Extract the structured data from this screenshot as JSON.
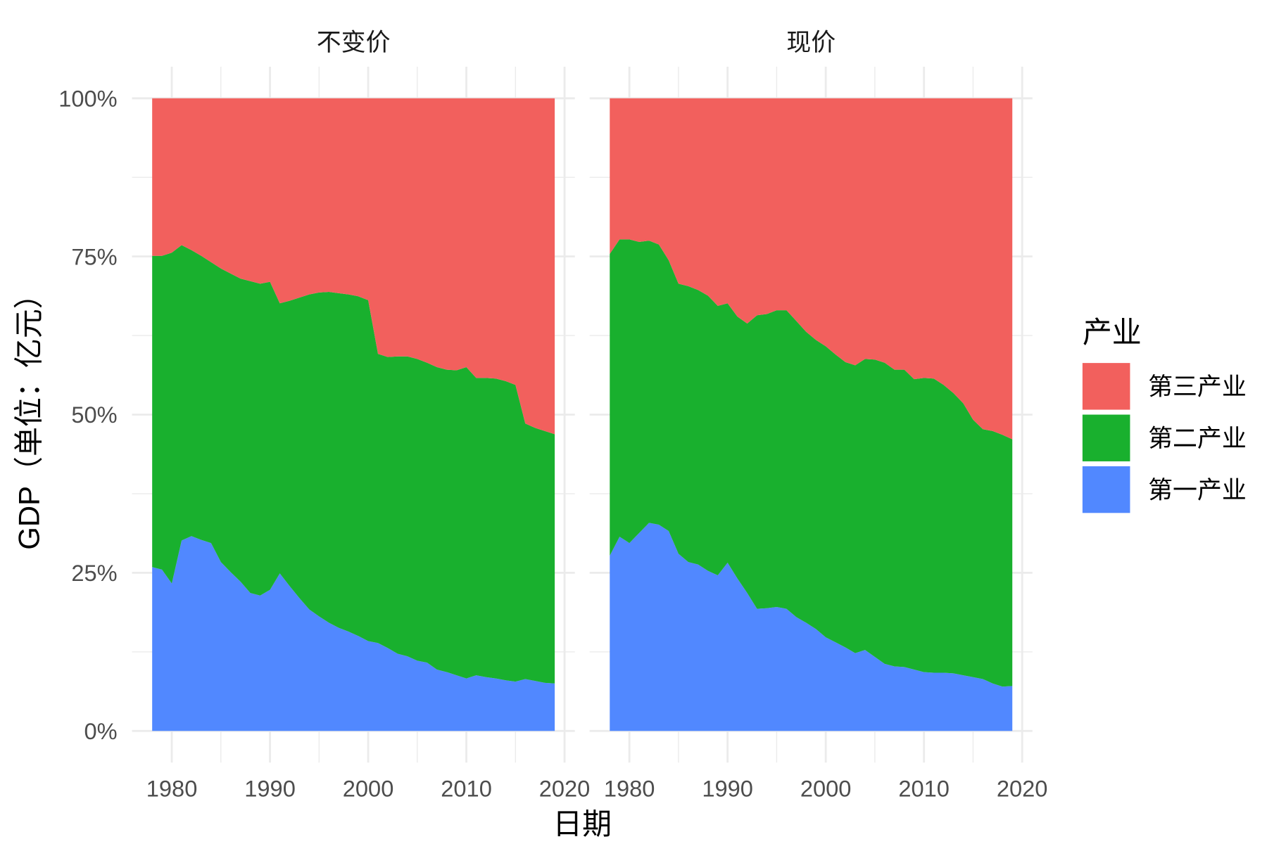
{
  "chart_data": {
    "type": "area",
    "stacking": "percent",
    "xlabel": "日期",
    "ylabel": "GDP（单位：亿元）",
    "x": [
      1978,
      1979,
      1980,
      1981,
      1982,
      1983,
      1984,
      1985,
      1986,
      1987,
      1988,
      1989,
      1990,
      1991,
      1992,
      1993,
      1994,
      1995,
      1996,
      1997,
      1998,
      1999,
      2000,
      2001,
      2002,
      2003,
      2004,
      2005,
      2006,
      2007,
      2008,
      2009,
      2010,
      2011,
      2012,
      2013,
      2014,
      2015,
      2016,
      2017,
      2018,
      2019
    ],
    "xlim": [
      1978,
      2019
    ],
    "xticks": [
      1980,
      1990,
      2000,
      2010,
      2020
    ],
    "ylim": [
      0,
      100
    ],
    "yticks": [
      0,
      25,
      50,
      75,
      100
    ],
    "ytick_labels": [
      "0%",
      "25%",
      "50%",
      "75%",
      "100%"
    ],
    "grid": true,
    "legend": {
      "title": "产业",
      "position": "right"
    },
    "series": [
      {
        "name": "第一产业",
        "color": "#5188FF"
      },
      {
        "name": "第二产业",
        "color": "#19B02E"
      },
      {
        "name": "第三产业",
        "color": "#F2605D"
      }
    ],
    "facets": [
      {
        "title": "不变价",
        "series": [
          {
            "values": [
              25.9,
              25.5,
              23.3,
              30.1,
              30.8,
              30.2,
              29.7,
              26.7,
              25.1,
              23.6,
              21.8,
              21.4,
              22.3,
              24.9,
              22.9,
              21.0,
              19.2,
              18.1,
              17.1,
              16.3,
              15.7,
              15.0,
              14.2,
              13.9,
              13.1,
              12.2,
              11.8,
              11.1,
              10.8,
              9.7,
              9.3,
              8.8,
              8.3,
              8.8,
              8.5,
              8.3,
              8.0,
              7.8,
              8.2,
              7.9,
              7.6,
              7.5
            ]
          },
          {
            "values": [
              49.2,
              49.6,
              52.3,
              46.7,
              45.2,
              44.9,
              44.4,
              46.4,
              47.2,
              47.9,
              49.3,
              49.3,
              48.7,
              42.7,
              45.1,
              47.5,
              49.8,
              51.2,
              52.3,
              52.9,
              53.3,
              53.7,
              53.9,
              45.7,
              46.0,
              47.0,
              47.4,
              47.7,
              47.4,
              47.8,
              47.8,
              48.2,
              49.2,
              47.0,
              47.3,
              47.4,
              47.3,
              46.9,
              40.4,
              40.0,
              39.8,
              39.4
            ]
          },
          {
            "values": [
              24.9,
              24.9,
              24.4,
              23.2,
              24.0,
              24.9,
              25.9,
              26.9,
              27.7,
              28.5,
              28.9,
              29.3,
              29.0,
              32.4,
              32.0,
              31.5,
              31.0,
              30.7,
              30.6,
              30.8,
              31.0,
              31.3,
              31.9,
              40.4,
              40.9,
              40.8,
              40.8,
              41.2,
              41.8,
              42.5,
              42.9,
              43.0,
              42.5,
              44.2,
              44.2,
              44.3,
              44.7,
              45.3,
              51.4,
              52.1,
              52.6,
              53.1
            ]
          }
        ]
      },
      {
        "title": "现价",
        "series": [
          {
            "values": [
              27.7,
              30.7,
              29.7,
              31.3,
              32.9,
              32.6,
              31.6,
              28.0,
              26.7,
              26.3,
              25.3,
              24.6,
              26.6,
              24.1,
              21.8,
              19.3,
              19.4,
              19.6,
              19.3,
              18.0,
              17.1,
              16.1,
              14.8,
              14.0,
              13.2,
              12.3,
              12.8,
              11.7,
              10.6,
              10.2,
              10.1,
              9.7,
              9.3,
              9.2,
              9.2,
              9.1,
              8.8,
              8.5,
              8.2,
              7.5,
              7.0,
              7.1
            ]
          },
          {
            "values": [
              47.7,
              47.0,
              48.0,
              46.0,
              44.6,
              44.3,
              42.8,
              42.7,
              43.6,
              43.4,
              43.5,
              42.6,
              41.0,
              41.4,
              42.6,
              46.4,
              46.5,
              46.9,
              47.2,
              46.8,
              46.0,
              45.7,
              46.0,
              45.5,
              45.1,
              45.5,
              46.0,
              47.0,
              47.6,
              46.9,
              47.0,
              45.9,
              46.5,
              46.5,
              45.5,
              44.3,
              43.0,
              40.7,
              39.5,
              39.9,
              39.8,
              39.0
            ]
          },
          {
            "values": [
              24.6,
              22.3,
              22.3,
              22.7,
              22.5,
              23.1,
              25.6,
              29.3,
              29.7,
              30.3,
              31.2,
              32.8,
              32.4,
              34.5,
              35.6,
              34.3,
              34.1,
              33.5,
              33.5,
              35.2,
              36.9,
              38.2,
              39.2,
              40.5,
              41.7,
              42.2,
              41.2,
              41.3,
              41.8,
              42.9,
              42.9,
              44.4,
              44.2,
              44.3,
              45.3,
              46.6,
              48.2,
              50.8,
              52.3,
              52.6,
              53.2,
              53.9
            ]
          }
        ]
      }
    ]
  }
}
